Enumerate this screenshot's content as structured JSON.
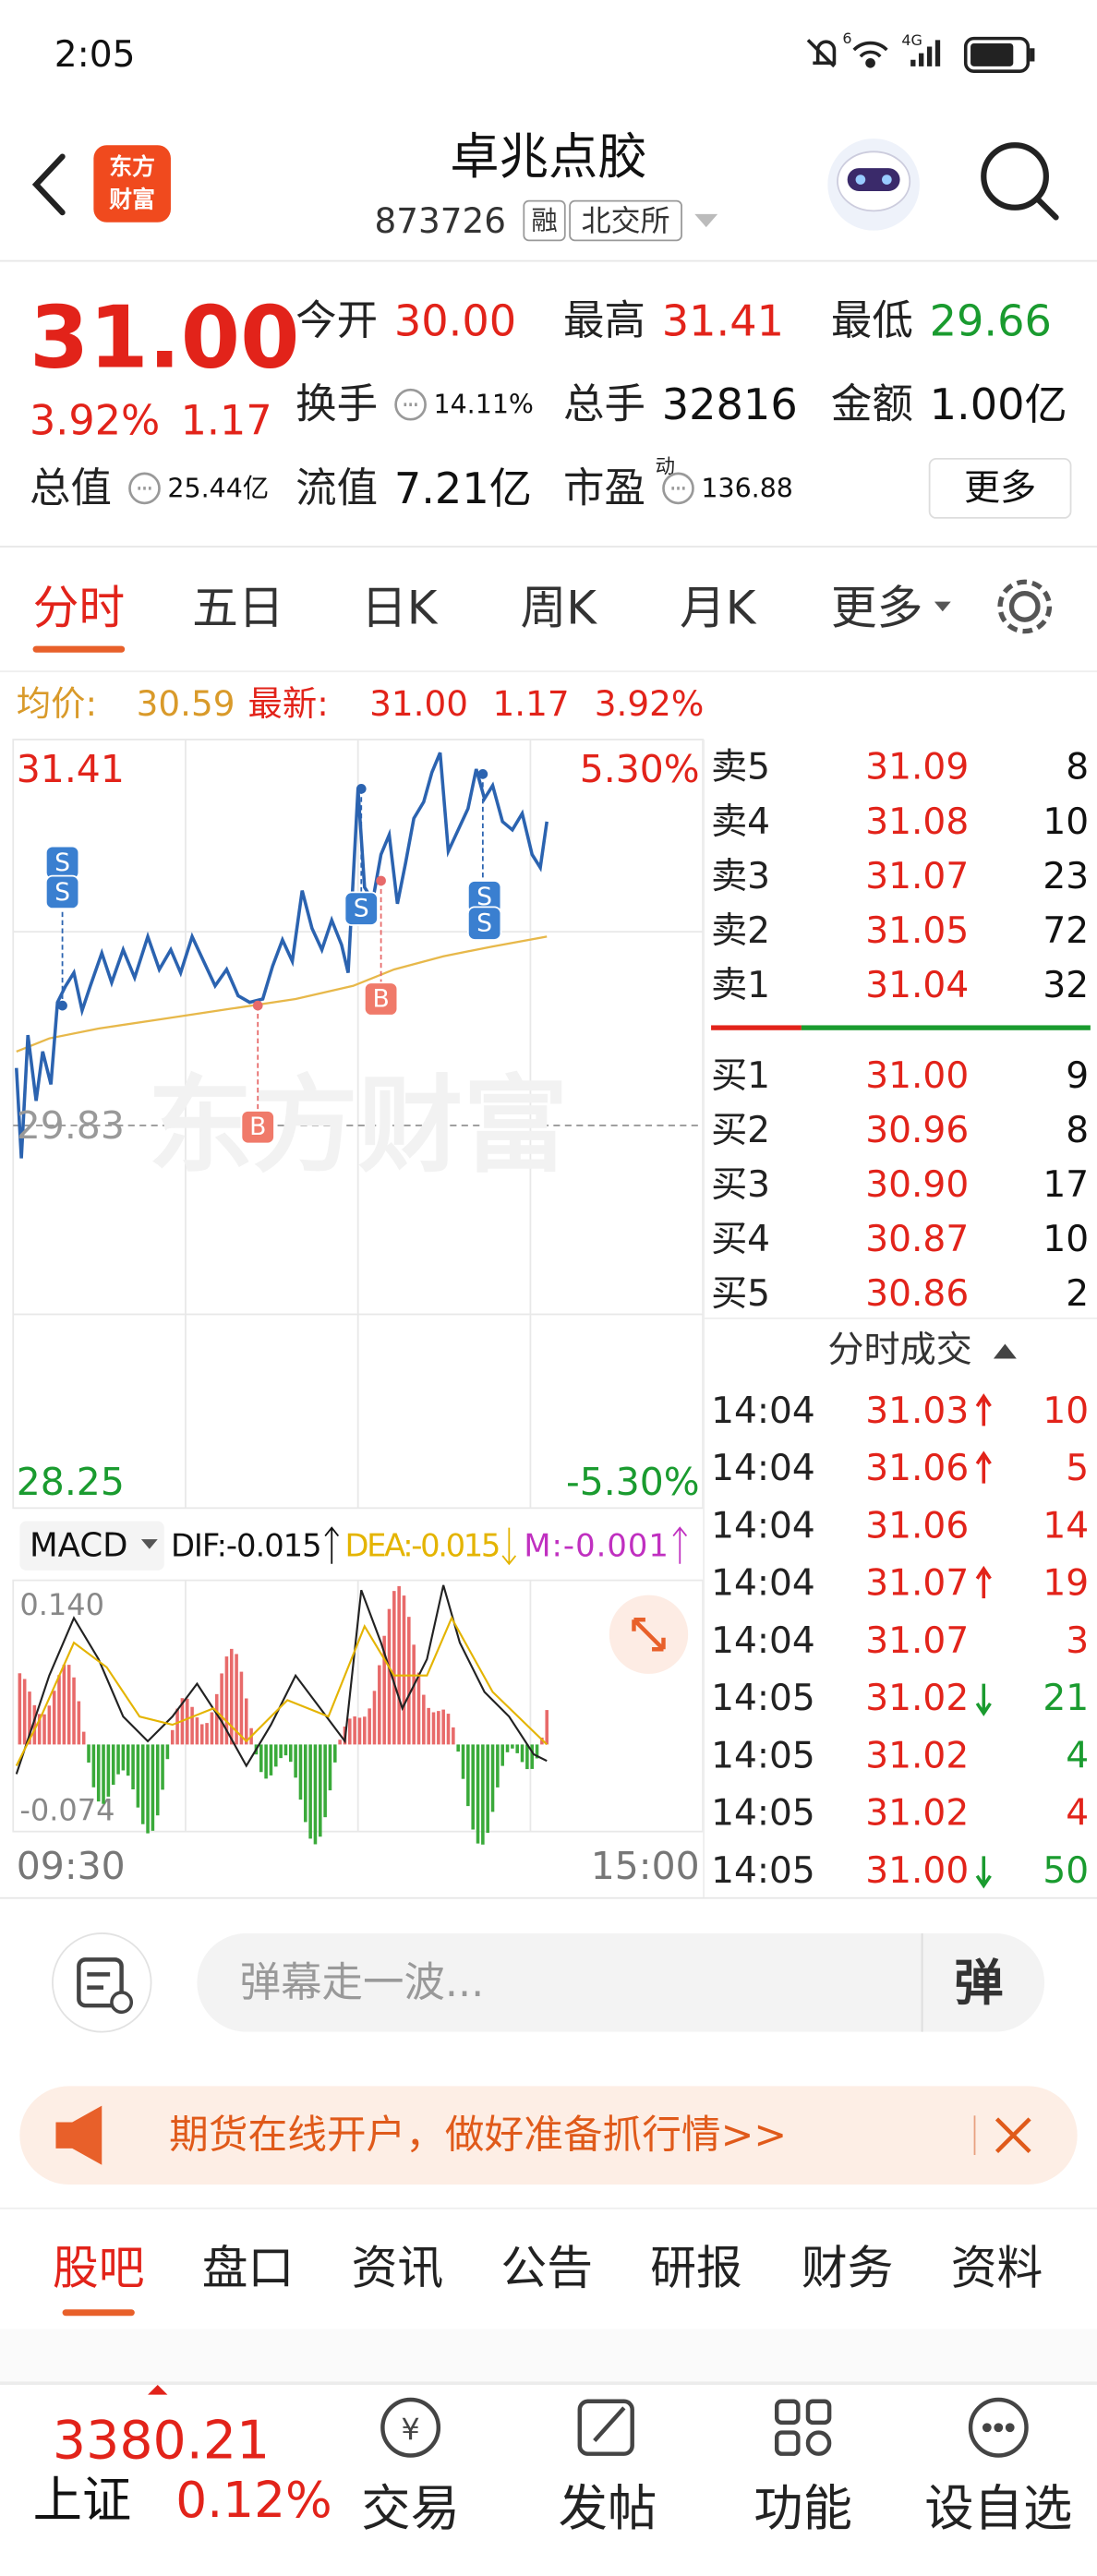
{
  "status_bar": {
    "time": "2:05",
    "network": "4G",
    "wifi_badge": "6"
  },
  "header": {
    "logo": [
      "东方",
      "财富"
    ],
    "title": "卓兆点胶",
    "code": "873726",
    "tags": [
      "融",
      "北交所"
    ]
  },
  "quote": {
    "price": "31.00",
    "change_pct": "3.92%",
    "change": "1.17",
    "stats": [
      [
        {
          "label": "今开",
          "value": "30.00",
          "color": "#e2231a"
        },
        {
          "label": "最高",
          "value": "31.41",
          "color": "#e2231a"
        },
        {
          "label": "最低",
          "value": "29.66",
          "color": "#1a9b2f"
        }
      ],
      [
        {
          "label": "换手",
          "value": "14.11%",
          "info": true
        },
        {
          "label": "总手",
          "value": "32816"
        },
        {
          "label": "金额",
          "value": "1.00亿"
        }
      ],
      [
        {
          "label": "总值",
          "value": "25.44亿",
          "info": true
        },
        {
          "label": "流值",
          "value": "7.21亿"
        },
        {
          "label": "市盈",
          "sup": "动",
          "value": "136.88",
          "info": true
        }
      ]
    ],
    "more": "更多"
  },
  "chart_tabs": {
    "items": [
      "分时",
      "五日",
      "日K",
      "周K",
      "月K",
      "更多"
    ],
    "active": 0
  },
  "intraday": {
    "avg_label": "均价:",
    "avg": "30.59",
    "last_label": "最新:",
    "last": "31.00",
    "change": "1.17",
    "change_pct": "3.92%",
    "high": "31.41",
    "high_pct": "5.30%",
    "prev_close": "29.83",
    "low": "28.25",
    "low_pct": "-5.30%",
    "watermark": "东方财富",
    "markers": [
      "S",
      "S",
      "S",
      "B",
      "B",
      "S",
      "S"
    ],
    "start_time": "09:30",
    "end_time": "15:00"
  },
  "macd": {
    "name": "MACD",
    "dif": "DIF:-0.015",
    "dea": "DEA:-0.015",
    "m": "M:-0.001",
    "max": "0.140",
    "min": "-0.074"
  },
  "order_book": {
    "asks": [
      {
        "label": "卖5",
        "price": "31.09",
        "volume": "8"
      },
      {
        "label": "卖4",
        "price": "31.08",
        "volume": "10"
      },
      {
        "label": "卖3",
        "price": "31.07",
        "volume": "23"
      },
      {
        "label": "卖2",
        "price": "31.05",
        "volume": "72"
      },
      {
        "label": "卖1",
        "price": "31.04",
        "volume": "32"
      }
    ],
    "bids": [
      {
        "label": "买1",
        "price": "31.00",
        "volume": "9"
      },
      {
        "label": "买2",
        "price": "30.96",
        "volume": "8"
      },
      {
        "label": "买3",
        "price": "30.90",
        "volume": "17"
      },
      {
        "label": "买4",
        "price": "30.87",
        "volume": "10"
      },
      {
        "label": "买5",
        "price": "30.86",
        "volume": "2"
      }
    ]
  },
  "trades": {
    "title": "分时成交",
    "rows": [
      {
        "time": "14:04",
        "price": "31.03",
        "dir": "up",
        "volume": "10",
        "side": "buy"
      },
      {
        "time": "14:04",
        "price": "31.06",
        "dir": "up",
        "volume": "5",
        "side": "buy"
      },
      {
        "time": "14:04",
        "price": "31.06",
        "volume": "14",
        "side": "buy"
      },
      {
        "time": "14:04",
        "price": "31.07",
        "dir": "up",
        "volume": "19",
        "side": "buy"
      },
      {
        "time": "14:04",
        "price": "31.07",
        "volume": "3",
        "side": "buy"
      },
      {
        "time": "14:05",
        "price": "31.02",
        "dir": "down",
        "volume": "21",
        "side": "sell"
      },
      {
        "time": "14:05",
        "price": "31.02",
        "volume": "4",
        "side": "sell"
      },
      {
        "time": "14:05",
        "price": "31.02",
        "volume": "4",
        "side": "buy"
      },
      {
        "time": "14:05",
        "price": "31.00",
        "dir": "down",
        "volume": "50",
        "side": "sell"
      }
    ]
  },
  "comment": {
    "placeholder": "弹幕走一波...",
    "button": "弹"
  },
  "banner": {
    "text": "期货在线开户，做好准备抓行情>>"
  },
  "section_tabs": {
    "items": [
      "股吧",
      "盘口",
      "资讯",
      "公告",
      "研报",
      "财务",
      "资料"
    ],
    "active": 0
  },
  "bottom_bar": {
    "index_value": "3380.21",
    "index_name": "上证",
    "index_change": "0.12%",
    "actions": [
      "交易",
      "发帖",
      "功能",
      "设自选"
    ]
  }
}
